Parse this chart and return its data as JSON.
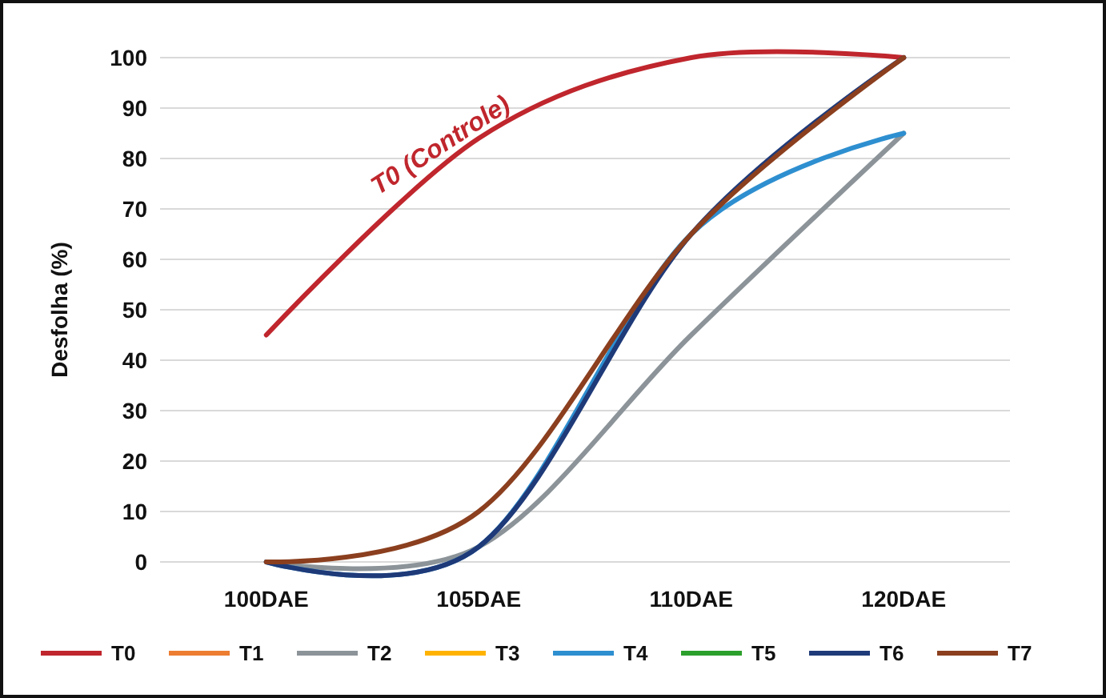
{
  "chart_data": {
    "type": "line",
    "ylabel": "Desfolha (%)",
    "annotations": [
      "T0 (Controle)"
    ],
    "categories": [
      "100DAE",
      "105DAE",
      "110DAE",
      "120DAE"
    ],
    "series": [
      {
        "name": "T0",
        "color": "#c0262d",
        "values": [
          45,
          84,
          100,
          100
        ]
      },
      {
        "name": "T1",
        "color": "#ed7d31",
        "values": [
          null,
          null,
          null,
          null
        ]
      },
      {
        "name": "T2",
        "color": "#8c9499",
        "values": [
          0,
          3,
          45,
          85
        ]
      },
      {
        "name": "T3",
        "color": "#ffb300",
        "values": [
          null,
          null,
          null,
          null
        ]
      },
      {
        "name": "T4",
        "color": "#2e8fd0",
        "values": [
          0,
          3,
          65,
          85
        ]
      },
      {
        "name": "T5",
        "color": "#2ca02c",
        "values": [
          null,
          null,
          null,
          null
        ]
      },
      {
        "name": "T6",
        "color": "#1f3a78",
        "values": [
          0,
          3,
          65,
          100
        ]
      },
      {
        "name": "T7",
        "color": "#8b3f1e",
        "values": [
          0,
          10,
          65,
          100
        ]
      }
    ],
    "ylim": [
      0,
      100
    ],
    "yticks": [
      0,
      10,
      20,
      30,
      40,
      50,
      60,
      70,
      80,
      90,
      100
    ],
    "grid": "y",
    "legend": "bottom",
    "marker": "none",
    "line_style": "solid"
  }
}
